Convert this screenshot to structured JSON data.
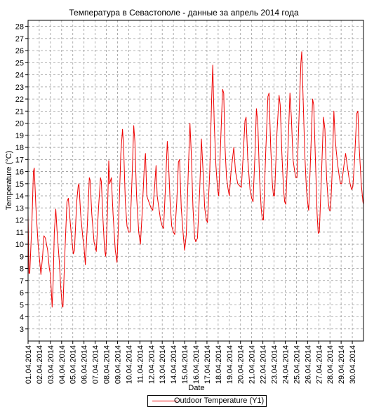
{
  "chart_data": {
    "type": "line",
    "title": "Температура в Севастополе - данные за апрель 2014 года",
    "xlabel": "Date",
    "ylabel": "Temperature (°C)",
    "ylim": [
      2,
      28.5
    ],
    "xlim": [
      1,
      31
    ],
    "grid": true,
    "legend_position": "bottom-center",
    "series_color": "#ee0000",
    "y_ticks": [
      3,
      4,
      5,
      6,
      7,
      8,
      9,
      10,
      11,
      12,
      13,
      14,
      15,
      16,
      17,
      18,
      19,
      20,
      21,
      22,
      23,
      24,
      25,
      26,
      27,
      28
    ],
    "x_tick_labels": [
      "01.04.2014",
      "02.04.2014",
      "03.04.2014",
      "04.04.2014",
      "05.04.2014",
      "06.04.2014",
      "07.04.2014",
      "08.04.2014",
      "09.04.2014",
      "10.04.2014",
      "11.04.2014",
      "12.04.2014",
      "13.04.2014",
      "14.04.2014",
      "15.04.2014",
      "16.04.2014",
      "17.04.2014",
      "18.04.2014",
      "19.04.2014",
      "20.04.2014",
      "21.04.2014",
      "22.04.2014",
      "23.04.2014",
      "24.04.2014",
      "25.04.2014",
      "26.04.2014",
      "27.04.2014",
      "28.04.2014",
      "29.04.2014",
      "30.04.2014"
    ],
    "series": [
      {
        "name": "Outdoor Temperature (Y1)",
        "points": [
          [
            1.0,
            12.5
          ],
          [
            1.08,
            7.6
          ],
          [
            1.15,
            7.6
          ],
          [
            1.35,
            12.0
          ],
          [
            1.48,
            16.0
          ],
          [
            1.55,
            16.3
          ],
          [
            1.7,
            13.0
          ],
          [
            1.9,
            10.0
          ],
          [
            2.05,
            8.5
          ],
          [
            2.15,
            7.5
          ],
          [
            2.3,
            9.0
          ],
          [
            2.42,
            10.7
          ],
          [
            2.55,
            10.5
          ],
          [
            2.75,
            9.5
          ],
          [
            2.9,
            8.0
          ],
          [
            3.0,
            7.5
          ],
          [
            3.15,
            4.8
          ],
          [
            3.25,
            7.0
          ],
          [
            3.35,
            11.0
          ],
          [
            3.48,
            12.9
          ],
          [
            3.6,
            11.0
          ],
          [
            3.8,
            8.5
          ],
          [
            3.92,
            6.5
          ],
          [
            4.05,
            4.9
          ],
          [
            4.12,
            4.8
          ],
          [
            4.3,
            9.5
          ],
          [
            4.48,
            13.5
          ],
          [
            4.6,
            13.8
          ],
          [
            4.75,
            12.0
          ],
          [
            4.9,
            10.5
          ],
          [
            5.05,
            9.2
          ],
          [
            5.15,
            9.5
          ],
          [
            5.35,
            13.5
          ],
          [
            5.48,
            14.8
          ],
          [
            5.55,
            15.0
          ],
          [
            5.7,
            12.5
          ],
          [
            5.9,
            10.5
          ],
          [
            6.0,
            9.8
          ],
          [
            6.12,
            8.3
          ],
          [
            6.3,
            11.5
          ],
          [
            6.48,
            15.5
          ],
          [
            6.55,
            15.3
          ],
          [
            6.7,
            12.5
          ],
          [
            6.9,
            10.2
          ],
          [
            7.0,
            9.8
          ],
          [
            7.1,
            9.4
          ],
          [
            7.3,
            13.0
          ],
          [
            7.48,
            15.5
          ],
          [
            7.55,
            15.2
          ],
          [
            7.7,
            12.0
          ],
          [
            7.85,
            9.5
          ],
          [
            7.95,
            9.0
          ],
          [
            8.1,
            12.5
          ],
          [
            8.22,
            16.9
          ],
          [
            8.3,
            15.0
          ],
          [
            8.45,
            15.5
          ],
          [
            8.6,
            12.5
          ],
          [
            8.8,
            9.5
          ],
          [
            8.95,
            8.5
          ],
          [
            9.1,
            12.0
          ],
          [
            9.3,
            17.5
          ],
          [
            9.45,
            19.5
          ],
          [
            9.55,
            18.0
          ],
          [
            9.7,
            13.5
          ],
          [
            9.85,
            11.5
          ],
          [
            10.0,
            11.0
          ],
          [
            10.12,
            11.0
          ],
          [
            10.3,
            15.5
          ],
          [
            10.45,
            19.8
          ],
          [
            10.55,
            18.5
          ],
          [
            10.7,
            14.0
          ],
          [
            10.9,
            11.0
          ],
          [
            11.05,
            10.0
          ],
          [
            11.2,
            12.5
          ],
          [
            11.4,
            16.5
          ],
          [
            11.5,
            17.5
          ],
          [
            11.62,
            14.0
          ],
          [
            11.8,
            13.5
          ],
          [
            12.0,
            13.0
          ],
          [
            12.15,
            12.8
          ],
          [
            12.3,
            14.5
          ],
          [
            12.45,
            16.5
          ],
          [
            12.55,
            14.0
          ],
          [
            12.7,
            13.0
          ],
          [
            12.85,
            12.0
          ],
          [
            13.0,
            11.5
          ],
          [
            13.12,
            11.3
          ],
          [
            13.3,
            15.0
          ],
          [
            13.45,
            18.5
          ],
          [
            13.55,
            17.0
          ],
          [
            13.7,
            13.5
          ],
          [
            13.85,
            11.5
          ],
          [
            14.0,
            11.0
          ],
          [
            14.12,
            10.8
          ],
          [
            14.3,
            13.5
          ],
          [
            14.45,
            16.8
          ],
          [
            14.55,
            17.0
          ],
          [
            14.7,
            13.0
          ],
          [
            14.9,
            10.5
          ],
          [
            15.0,
            9.5
          ],
          [
            15.15,
            10.8
          ],
          [
            15.35,
            16.5
          ],
          [
            15.48,
            20.0
          ],
          [
            15.6,
            17.5
          ],
          [
            15.75,
            13.0
          ],
          [
            15.9,
            10.5
          ],
          [
            16.0,
            10.2
          ],
          [
            16.15,
            10.5
          ],
          [
            16.35,
            14.5
          ],
          [
            16.5,
            18.7
          ],
          [
            16.65,
            16.0
          ],
          [
            16.8,
            13.0
          ],
          [
            16.95,
            12.0
          ],
          [
            17.05,
            11.8
          ],
          [
            17.25,
            16.0
          ],
          [
            17.42,
            22.0
          ],
          [
            17.52,
            24.8
          ],
          [
            17.65,
            20.0
          ],
          [
            17.8,
            16.5
          ],
          [
            17.95,
            14.5
          ],
          [
            18.05,
            14.0
          ],
          [
            18.25,
            19.0
          ],
          [
            18.4,
            22.8
          ],
          [
            18.5,
            22.5
          ],
          [
            18.62,
            18.0
          ],
          [
            18.75,
            15.5
          ],
          [
            18.9,
            14.5
          ],
          [
            19.0,
            14.0
          ],
          [
            19.15,
            16.0
          ],
          [
            19.3,
            17.2
          ],
          [
            19.4,
            18.0
          ],
          [
            19.55,
            16.0
          ],
          [
            19.75,
            15.0
          ],
          [
            19.95,
            14.8
          ],
          [
            20.08,
            14.7
          ],
          [
            20.25,
            17.5
          ],
          [
            20.4,
            20.2
          ],
          [
            20.5,
            20.5
          ],
          [
            20.65,
            17.0
          ],
          [
            20.85,
            14.5
          ],
          [
            21.0,
            13.8
          ],
          [
            21.12,
            13.5
          ],
          [
            21.3,
            17.5
          ],
          [
            21.42,
            21.2
          ],
          [
            21.55,
            20.0
          ],
          [
            21.7,
            15.5
          ],
          [
            21.85,
            13.0
          ],
          [
            21.95,
            12.0
          ],
          [
            22.05,
            12.0
          ],
          [
            22.25,
            17.5
          ],
          [
            22.45,
            22.2
          ],
          [
            22.55,
            22.5
          ],
          [
            22.7,
            18.0
          ],
          [
            22.85,
            15.0
          ],
          [
            22.95,
            14.0
          ],
          [
            23.05,
            14.0
          ],
          [
            23.25,
            19.0
          ],
          [
            23.45,
            22.3
          ],
          [
            23.55,
            21.5
          ],
          [
            23.7,
            17.5
          ],
          [
            23.85,
            14.5
          ],
          [
            23.95,
            13.5
          ],
          [
            24.05,
            13.3
          ],
          [
            24.25,
            18.0
          ],
          [
            24.42,
            22.5
          ],
          [
            24.55,
            20.5
          ],
          [
            24.7,
            17.0
          ],
          [
            24.85,
            16.0
          ],
          [
            24.95,
            15.5
          ],
          [
            25.05,
            15.5
          ],
          [
            25.25,
            21.0
          ],
          [
            25.4,
            25.0
          ],
          [
            25.48,
            25.9
          ],
          [
            25.6,
            22.0
          ],
          [
            25.75,
            17.5
          ],
          [
            25.9,
            14.5
          ],
          [
            26.02,
            13.3
          ],
          [
            26.1,
            12.8
          ],
          [
            26.3,
            18.0
          ],
          [
            26.45,
            22.0
          ],
          [
            26.55,
            21.5
          ],
          [
            26.7,
            17.0
          ],
          [
            26.85,
            12.5
          ],
          [
            26.95,
            10.9
          ],
          [
            27.05,
            11.0
          ],
          [
            27.25,
            16.0
          ],
          [
            27.42,
            20.5
          ],
          [
            27.55,
            19.5
          ],
          [
            27.7,
            15.5
          ],
          [
            27.85,
            13.5
          ],
          [
            27.95,
            12.8
          ],
          [
            28.05,
            12.8
          ],
          [
            28.2,
            16.0
          ],
          [
            28.35,
            21.0
          ],
          [
            28.45,
            19.0
          ],
          [
            28.55,
            17.8
          ],
          [
            28.7,
            16.5
          ],
          [
            28.85,
            15.5
          ],
          [
            28.95,
            15.0
          ],
          [
            29.05,
            15.0
          ],
          [
            29.25,
            16.5
          ],
          [
            29.4,
            17.5
          ],
          [
            29.55,
            16.5
          ],
          [
            29.7,
            15.5
          ],
          [
            29.85,
            14.8
          ],
          [
            29.95,
            14.5
          ],
          [
            30.05,
            14.8
          ],
          [
            30.2,
            17.0
          ],
          [
            30.4,
            20.8
          ],
          [
            30.5,
            21.0
          ],
          [
            30.62,
            18.0
          ],
          [
            30.8,
            15.0
          ],
          [
            30.95,
            13.5
          ],
          [
            31.0,
            13.3
          ]
        ]
      }
    ]
  }
}
